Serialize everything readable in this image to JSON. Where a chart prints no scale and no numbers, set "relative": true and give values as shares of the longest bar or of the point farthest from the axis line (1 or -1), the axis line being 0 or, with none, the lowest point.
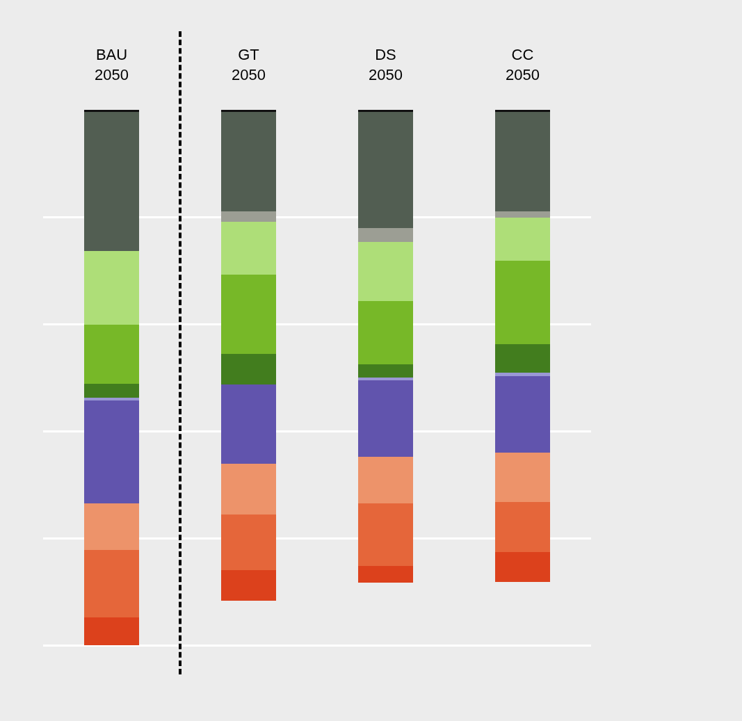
{
  "chart_data": {
    "type": "bar",
    "stacked": true,
    "relative": true,
    "grid": true,
    "categories": [
      "BAU\n2050",
      "GT\n2050",
      "DS\n2050",
      "CC\n2050"
    ],
    "series": [
      {
        "color": "#111111",
        "values": [
          -0.004,
          -0.004,
          -0.004,
          -0.004
        ]
      },
      {
        "color": "#525e52",
        "values": [
          -0.26,
          -0.185,
          -0.217,
          -0.185
        ]
      },
      {
        "color": "#9c9e94",
        "values": [
          0,
          -0.02,
          -0.025,
          -0.012
        ]
      },
      {
        "color": "#aede78",
        "values": [
          -0.137,
          -0.099,
          -0.111,
          -0.081
        ]
      },
      {
        "color": "#77b828",
        "values": [
          -0.111,
          -0.148,
          -0.118,
          -0.155
        ]
      },
      {
        "color": "#427d1e",
        "values": [
          -0.025,
          -0.057,
          -0.025,
          -0.054
        ]
      },
      {
        "color": "#9a98d4",
        "values": [
          -0.005,
          0,
          -0.005,
          -0.006
        ]
      },
      {
        "color": "#6154ad",
        "values": [
          -0.192,
          -0.148,
          -0.143,
          -0.143
        ]
      },
      {
        "color": "#ed936a",
        "values": [
          -0.088,
          -0.094,
          -0.086,
          -0.092
        ]
      },
      {
        "color": "#e5663a",
        "values": [
          -0.125,
          -0.104,
          -0.118,
          -0.094
        ]
      },
      {
        "color": "#dc411c",
        "values": [
          -0.053,
          -0.057,
          -0.031,
          -0.055
        ]
      }
    ]
  }
}
